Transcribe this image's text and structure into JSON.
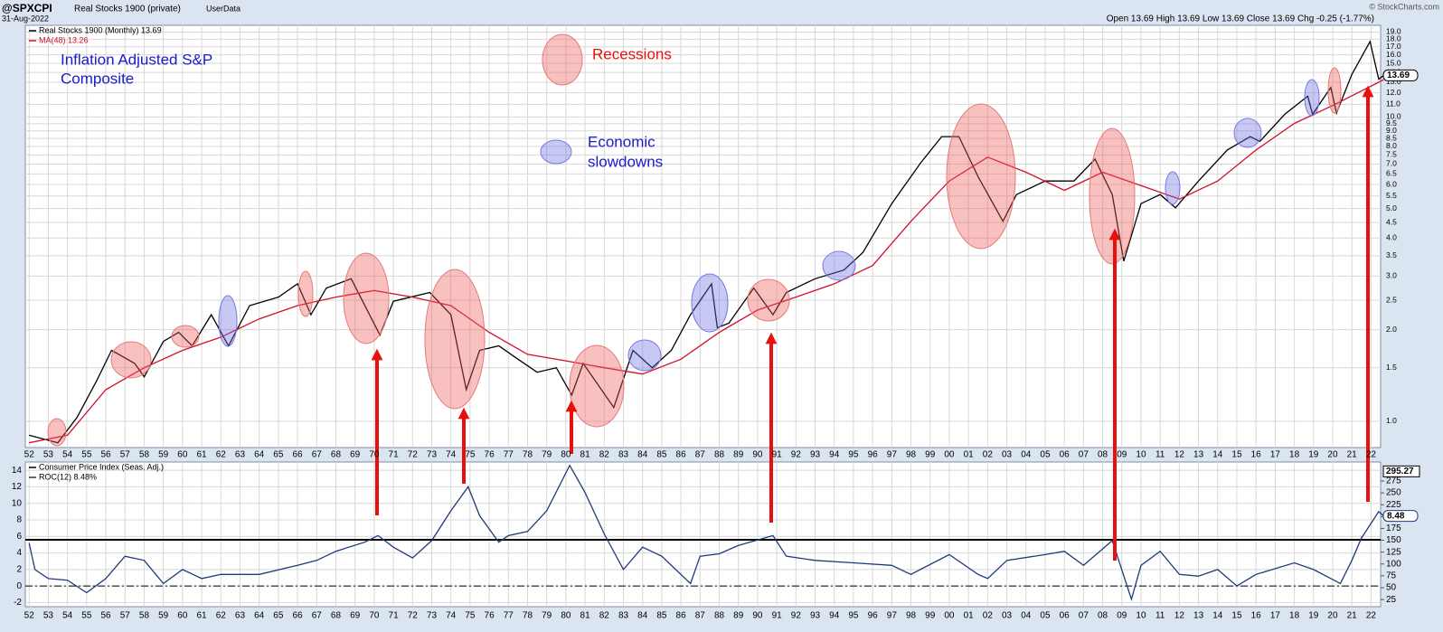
{
  "header": {
    "symbol": "@SPXCPI",
    "name": "Real Stocks 1900 (private)",
    "source": "UserData",
    "date": "31-Aug-2022",
    "quote": "Open 13.69  High 13.69  Low 13.69  Close 13.69  Chg -0.25 (-1.77%)",
    "credit": "© StockCharts.com"
  },
  "annotations": {
    "title_lines": [
      "Inflation Adjusted S&P",
      "Composite"
    ],
    "recessions": "Recessions",
    "slowdowns": [
      "Economic",
      "slowdowns"
    ]
  },
  "chart_data": [
    {
      "type": "line",
      "log_scale": true,
      "grid": true,
      "xlim": [
        1951.8,
        2022.5
      ],
      "xticks": [
        {
          "value": 1952,
          "label": "52"
        },
        {
          "value": 1953,
          "label": "53"
        },
        {
          "value": 1954,
          "label": "54"
        },
        {
          "value": 1955,
          "label": "55"
        },
        {
          "value": 1956,
          "label": "56"
        },
        {
          "value": 1957,
          "label": "57"
        },
        {
          "value": 1958,
          "label": "58"
        },
        {
          "value": 1959,
          "label": "59"
        },
        {
          "value": 1960,
          "label": "60"
        },
        {
          "value": 1961,
          "label": "61"
        },
        {
          "value": 1962,
          "label": "62"
        },
        {
          "value": 1963,
          "label": "63"
        },
        {
          "value": 1964,
          "label": "64"
        },
        {
          "value": 1965,
          "label": "65"
        },
        {
          "value": 1966,
          "label": "66"
        },
        {
          "value": 1967,
          "label": "67"
        },
        {
          "value": 1968,
          "label": "68"
        },
        {
          "value": 1969,
          "label": "69"
        },
        {
          "value": 1970,
          "label": "70"
        },
        {
          "value": 1971,
          "label": "71"
        },
        {
          "value": 1972,
          "label": "72"
        },
        {
          "value": 1973,
          "label": "73"
        },
        {
          "value": 1974,
          "label": "74"
        },
        {
          "value": 1975,
          "label": "75"
        },
        {
          "value": 1976,
          "label": "76"
        },
        {
          "value": 1977,
          "label": "77"
        },
        {
          "value": 1978,
          "label": "78"
        },
        {
          "value": 1979,
          "label": "79"
        },
        {
          "value": 1980,
          "label": "80"
        },
        {
          "value": 1981,
          "label": "81"
        },
        {
          "value": 1982,
          "label": "82"
        },
        {
          "value": 1983,
          "label": "83"
        },
        {
          "value": 1984,
          "label": "84"
        },
        {
          "value": 1985,
          "label": "85"
        },
        {
          "value": 1986,
          "label": "86"
        },
        {
          "value": 1987,
          "label": "87"
        },
        {
          "value": 1988,
          "label": "88"
        },
        {
          "value": 1989,
          "label": "89"
        },
        {
          "value": 1990,
          "label": "90"
        },
        {
          "value": 1991,
          "label": "91"
        },
        {
          "value": 1992,
          "label": "92"
        },
        {
          "value": 1993,
          "label": "93"
        },
        {
          "value": 1994,
          "label": "94"
        },
        {
          "value": 1995,
          "label": "95"
        },
        {
          "value": 1996,
          "label": "96"
        },
        {
          "value": 1997,
          "label": "97"
        },
        {
          "value": 1998,
          "label": "98"
        },
        {
          "value": 1999,
          "label": "99"
        },
        {
          "value": 2000,
          "label": "00"
        },
        {
          "value": 2001,
          "label": "01"
        },
        {
          "value": 2002,
          "label": "02"
        },
        {
          "value": 2003,
          "label": "03"
        },
        {
          "value": 2004,
          "label": "04"
        },
        {
          "value": 2005,
          "label": "05"
        },
        {
          "value": 2006,
          "label": "06"
        },
        {
          "value": 2007,
          "label": "07"
        },
        {
          "value": 2008,
          "label": "08"
        },
        {
          "value": 2009,
          "label": "09"
        },
        {
          "value": 2010,
          "label": "10"
        },
        {
          "value": 2011,
          "label": "11"
        },
        {
          "value": 2012,
          "label": "12"
        },
        {
          "value": 2013,
          "label": "13"
        },
        {
          "value": 2014,
          "label": "14"
        },
        {
          "value": 2015,
          "label": "15"
        },
        {
          "value": 2016,
          "label": "16"
        },
        {
          "value": 2017,
          "label": "17"
        },
        {
          "value": 2018,
          "label": "18"
        },
        {
          "value": 2019,
          "label": "19"
        },
        {
          "value": 2020,
          "label": "20"
        },
        {
          "value": 2021,
          "label": "21"
        },
        {
          "value": 2022,
          "label": "22"
        }
      ],
      "ylim": [
        0.82,
        20
      ],
      "yticks": [
        {
          "value": 1,
          "label": "1.0"
        },
        1.5,
        {
          "value": 2,
          "label": "2.0"
        },
        2.5,
        {
          "value": 3,
          "label": "3.0"
        },
        3.5,
        {
          "value": 4,
          "label": "4.0"
        },
        4.5,
        {
          "value": 5,
          "label": "5.0"
        },
        5.5,
        {
          "value": 6,
          "label": "6.0"
        },
        6.5,
        {
          "value": 7,
          "label": "7.0"
        },
        7.5,
        {
          "value": 8,
          "label": "8.0"
        },
        8.5,
        {
          "value": 9,
          "label": "9.0"
        },
        9.5,
        {
          "value": 10,
          "label": "10.0"
        },
        {
          "value": 11,
          "label": "11.0"
        },
        {
          "value": 12,
          "label": "12.0"
        },
        {
          "value": 13,
          "label": "13.0"
        },
        {
          "value": 14,
          "label": "14.0"
        },
        {
          "value": 15,
          "label": "15.0"
        },
        {
          "value": 16,
          "label": "16.0"
        },
        {
          "value": 17,
          "label": "17.0"
        },
        {
          "value": 18,
          "label": "18.0"
        },
        {
          "value": 19,
          "label": "19.0"
        }
      ],
      "series": [
        {
          "name": "Real Stocks 1900 (Monthly) 13.69",
          "color": "#000000",
          "x": [
            1952.0,
            1953.5,
            1954.5,
            1955.5,
            1956.3,
            1957.5,
            1958.0,
            1959.0,
            1959.8,
            1960.5,
            1961.5,
            1962.4,
            1963.5,
            1965.0,
            1966.0,
            1966.7,
            1967.5,
            1968.8,
            1970.3,
            1971.0,
            1972.9,
            1974.0,
            1974.8,
            1975.5,
            1976.5,
            1977.5,
            1978.5,
            1979.5,
            1980.3,
            1980.9,
            1982.5,
            1983.5,
            1984.5,
            1985.5,
            1986.5,
            1987.6,
            1987.9,
            1988.5,
            1989.8,
            1990.8,
            1991.5,
            1993.0,
            1994.5,
            1995.5,
            1997.0,
            1998.5,
            1999.6,
            2000.5,
            2001.5,
            2002.8,
            2003.5,
            2005.0,
            2006.5,
            2007.6,
            2008.5,
            2009.1,
            2010.0,
            2011.0,
            2011.8,
            2013.0,
            2014.5,
            2015.7,
            2016.2,
            2017.5,
            2018.7,
            2018.95,
            2019.9,
            2020.2,
            2021.0,
            2021.95,
            2022.4,
            2022.66
          ],
          "values": [
            0.9,
            0.85,
            1.03,
            1.35,
            1.71,
            1.55,
            1.4,
            1.83,
            1.96,
            1.77,
            2.24,
            1.77,
            2.4,
            2.56,
            2.83,
            2.24,
            2.74,
            2.94,
            1.92,
            2.48,
            2.65,
            2.24,
            1.27,
            1.71,
            1.77,
            1.6,
            1.45,
            1.5,
            1.22,
            1.55,
            1.11,
            1.71,
            1.5,
            1.71,
            2.24,
            2.83,
            2.03,
            2.1,
            2.74,
            2.24,
            2.65,
            2.94,
            3.14,
            3.59,
            5.19,
            7.05,
            8.62,
            8.62,
            6.36,
            4.54,
            5.56,
            6.16,
            6.16,
            7.27,
            5.56,
            3.36,
            5.19,
            5.56,
            5.03,
            6.16,
            7.79,
            8.62,
            8.31,
            10.2,
            11.7,
            10.2,
            12.5,
            10.3,
            13.8,
            17.7,
            13.3,
            13.69
          ]
        },
        {
          "name": "MA(48) 13.26",
          "color": "#d0102a",
          "x": [
            1952,
            1954,
            1956,
            1958,
            1960,
            1962,
            1964,
            1966,
            1968,
            1970,
            1972,
            1974,
            1976,
            1978,
            1980,
            1982,
            1984,
            1986,
            1988,
            1990,
            1992,
            1994,
            1996,
            1998,
            2000,
            2002,
            2004,
            2006,
            2008,
            2010,
            2012,
            2014,
            2016,
            2018,
            2020,
            2022.66
          ],
          "values": [
            0.85,
            0.9,
            1.27,
            1.5,
            1.71,
            1.89,
            2.17,
            2.4,
            2.56,
            2.69,
            2.56,
            2.4,
            1.96,
            1.66,
            1.58,
            1.5,
            1.43,
            1.6,
            1.96,
            2.32,
            2.56,
            2.83,
            3.25,
            4.54,
            6.16,
            7.38,
            6.58,
            5.74,
            6.58,
            5.95,
            5.37,
            6.16,
            7.79,
            9.52,
            10.9,
            13.26
          ]
        }
      ]
    },
    {
      "type": "line",
      "grid": true,
      "ylim": [
        -2.5,
        15
      ],
      "yticks": [
        -2,
        0,
        2,
        4,
        6,
        8,
        10,
        12,
        14
      ],
      "y2lim": [
        10,
        315
      ],
      "y2ticks": [
        25,
        50,
        75,
        100,
        125,
        150,
        175,
        200,
        225,
        250,
        275
      ],
      "y2_last": 295.27,
      "reference_lines": [
        {
          "value": 5.6,
          "style": "solid",
          "color": "#000000"
        },
        {
          "value": 0,
          "style": "dashdot",
          "color": "#000000"
        }
      ],
      "series": [
        {
          "name": "Consumer Price Index (Seas. Adj.)",
          "color": "#000000",
          "axis": "y2"
        },
        {
          "name": "ROC(12) 8.48%",
          "color": "#1f3a78",
          "x": [
            1952.0,
            1952.3,
            1953,
            1954,
            1955,
            1956,
            1957,
            1958,
            1959,
            1960,
            1961,
            1962,
            1964,
            1966,
            1967,
            1968,
            1969.5,
            1970.2,
            1971,
            1972,
            1973,
            1974,
            1974.9,
            1975.5,
            1976.5,
            1977,
            1978,
            1979,
            1980.2,
            1981,
            1982,
            1983,
            1984,
            1985,
            1986.5,
            1987,
            1988,
            1989,
            1990.8,
            1991.5,
            1993,
            1995,
            1997,
            1998,
            2000,
            2001.5,
            2002,
            2003,
            2005,
            2006,
            2007,
            2008.5,
            2009.5,
            2010,
            2011,
            2012,
            2013,
            2014,
            2015,
            2016,
            2018,
            2019,
            2020.4,
            2021,
            2021.5,
            2022.4,
            2022.66
          ],
          "values": [
            5.2,
            2.0,
            0.9,
            0.7,
            -0.8,
            0.9,
            3.6,
            3.1,
            0.3,
            2.0,
            0.9,
            1.4,
            1.4,
            2.5,
            3.1,
            4.2,
            5.3,
            6.1,
            4.7,
            3.4,
            5.5,
            9.1,
            12.0,
            8.5,
            5.3,
            6.1,
            6.6,
            9.1,
            14.6,
            11.3,
            6.3,
            2.0,
            4.7,
            3.6,
            0.3,
            3.6,
            3.9,
            4.9,
            6.1,
            3.6,
            3.1,
            2.8,
            2.5,
            1.4,
            3.8,
            1.4,
            0.9,
            3.1,
            3.8,
            4.2,
            2.5,
            5.5,
            -1.6,
            2.5,
            4.2,
            1.4,
            1.2,
            2.0,
            0.0,
            1.4,
            2.8,
            2.0,
            0.3,
            3.1,
            5.8,
            9.0,
            8.48
          ]
        }
      ]
    }
  ]
}
